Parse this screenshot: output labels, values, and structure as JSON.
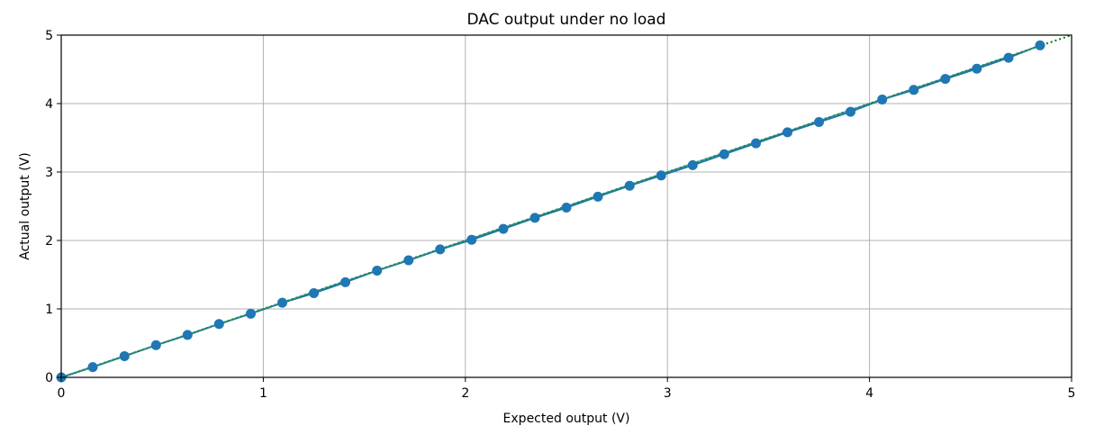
{
  "chart_data": {
    "type": "line",
    "title": "DAC output under no load",
    "xlabel": "Expected output (V)",
    "ylabel": "Actual output (V)",
    "xlim": [
      0,
      5
    ],
    "ylim": [
      0,
      5
    ],
    "xticks": [
      "0",
      "1",
      "2",
      "3",
      "4",
      "5"
    ],
    "yticks": [
      "0",
      "1",
      "2",
      "3",
      "4",
      "5"
    ],
    "grid": true,
    "legend": false,
    "series": [
      {
        "style": "solid line with circle markers",
        "color": "#1f77b4",
        "x": [
          0.0,
          0.156,
          0.313,
          0.469,
          0.625,
          0.781,
          0.938,
          1.094,
          1.25,
          1.406,
          1.563,
          1.719,
          1.875,
          2.031,
          2.188,
          2.344,
          2.5,
          2.656,
          2.813,
          2.969,
          3.125,
          3.281,
          3.438,
          3.594,
          3.75,
          3.906,
          4.063,
          4.219,
          4.375,
          4.531,
          4.688,
          4.844
        ],
        "y": [
          0.0,
          0.15,
          0.31,
          0.47,
          0.62,
          0.78,
          0.93,
          1.09,
          1.23,
          1.39,
          1.56,
          1.71,
          1.87,
          2.01,
          2.17,
          2.33,
          2.48,
          2.64,
          2.8,
          2.95,
          3.1,
          3.26,
          3.42,
          3.58,
          3.73,
          3.88,
          4.06,
          4.2,
          4.36,
          4.51,
          4.67,
          4.85
        ]
      },
      {
        "style": "dotted reference line",
        "color": "#008000",
        "x": [
          0,
          5
        ],
        "y": [
          0,
          5
        ]
      },
      {
        "style": "thin teal fit line",
        "color": "#2e8b7a",
        "x": [
          0,
          4.844
        ],
        "y": [
          0,
          4.845
        ]
      }
    ]
  }
}
